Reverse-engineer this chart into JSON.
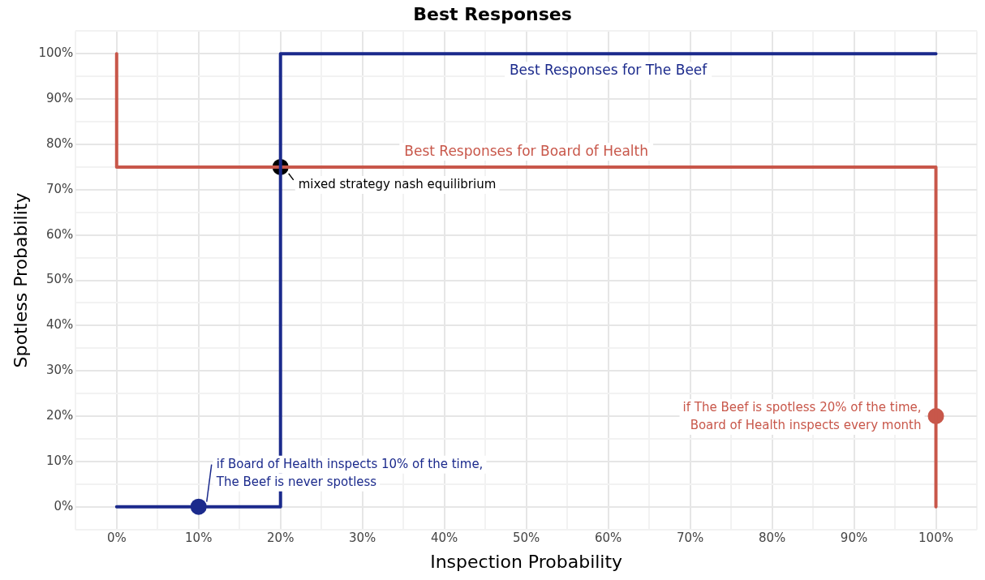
{
  "chart_data": {
    "type": "line",
    "title": "Best Responses",
    "xlabel": "Inspection Probability",
    "ylabel": "Spotless Probability",
    "xlim": [
      -5,
      105
    ],
    "ylim": [
      -5,
      105
    ],
    "xticks": [
      {
        "value": -5,
        "label": null
      },
      {
        "value": 0,
        "label": "0%"
      },
      {
        "value": 5,
        "label": null
      },
      {
        "value": 10,
        "label": "10%"
      },
      {
        "value": 15,
        "label": null
      },
      {
        "value": 20,
        "label": "20%"
      },
      {
        "value": 25,
        "label": null
      },
      {
        "value": 30,
        "label": "30%"
      },
      {
        "value": 35,
        "label": null
      },
      {
        "value": 40,
        "label": "40%"
      },
      {
        "value": 45,
        "label": null
      },
      {
        "value": 50,
        "label": "50%"
      },
      {
        "value": 55,
        "label": null
      },
      {
        "value": 60,
        "label": "60%"
      },
      {
        "value": 65,
        "label": null
      },
      {
        "value": 70,
        "label": "70%"
      },
      {
        "value": 75,
        "label": null
      },
      {
        "value": 80,
        "label": "80%"
      },
      {
        "value": 85,
        "label": null
      },
      {
        "value": 90,
        "label": "90%"
      },
      {
        "value": 95,
        "label": null
      },
      {
        "value": 100,
        "label": "100%"
      },
      {
        "value": 105,
        "label": null
      }
    ],
    "yticks": [
      {
        "value": -5,
        "label": null
      },
      {
        "value": 0,
        "label": "0%"
      },
      {
        "value": 5,
        "label": null
      },
      {
        "value": 10,
        "label": "10%"
      },
      {
        "value": 15,
        "label": null
      },
      {
        "value": 20,
        "label": "20%"
      },
      {
        "value": 25,
        "label": null
      },
      {
        "value": 30,
        "label": "30%"
      },
      {
        "value": 35,
        "label": null
      },
      {
        "value": 40,
        "label": "40%"
      },
      {
        "value": 45,
        "label": null
      },
      {
        "value": 50,
        "label": "50%"
      },
      {
        "value": 55,
        "label": null
      },
      {
        "value": 60,
        "label": "60%"
      },
      {
        "value": 65,
        "label": null
      },
      {
        "value": 70,
        "label": "70%"
      },
      {
        "value": 75,
        "label": null
      },
      {
        "value": 80,
        "label": "80%"
      },
      {
        "value": 85,
        "label": null
      },
      {
        "value": 90,
        "label": "90%"
      },
      {
        "value": 95,
        "label": null
      },
      {
        "value": 100,
        "label": "100%"
      },
      {
        "value": 105,
        "label": null
      }
    ],
    "grid": true,
    "legend": false,
    "series": [
      {
        "name": "Best Responses for The Beef",
        "type": "line",
        "color": "#1b2a8c",
        "x": [
          0,
          20,
          20,
          100
        ],
        "values": [
          0,
          0,
          100,
          100
        ],
        "marker": "none"
      },
      {
        "name": "Best Responses for Board of Health",
        "type": "line",
        "color": "#c8574a",
        "x": [
          0,
          0,
          100,
          100
        ],
        "values": [
          100,
          75,
          75,
          0
        ],
        "marker": "none"
      },
      {
        "type": "scatter",
        "color": "#000000",
        "x": [
          20
        ],
        "values": [
          75
        ],
        "marker": "circle"
      },
      {
        "type": "scatter",
        "color": "#1b2a8c",
        "x": [
          10
        ],
        "values": [
          0
        ],
        "marker": "circle"
      },
      {
        "type": "scatter",
        "color": "#c8574a",
        "x": [
          100
        ],
        "values": [
          20
        ],
        "marker": "circle"
      }
    ],
    "annotations": [
      {
        "text": "mixed strategy nash equilibrium",
        "x": 20,
        "y": 75
      },
      {
        "text": "if Board of Health inspects 10% of the time, The Beef is never spotless",
        "x": 10,
        "y": 0
      },
      {
        "text": "if The Beef is spotless 20% of the time, Board of Health inspects every month",
        "x": 100,
        "y": 20
      }
    ]
  }
}
